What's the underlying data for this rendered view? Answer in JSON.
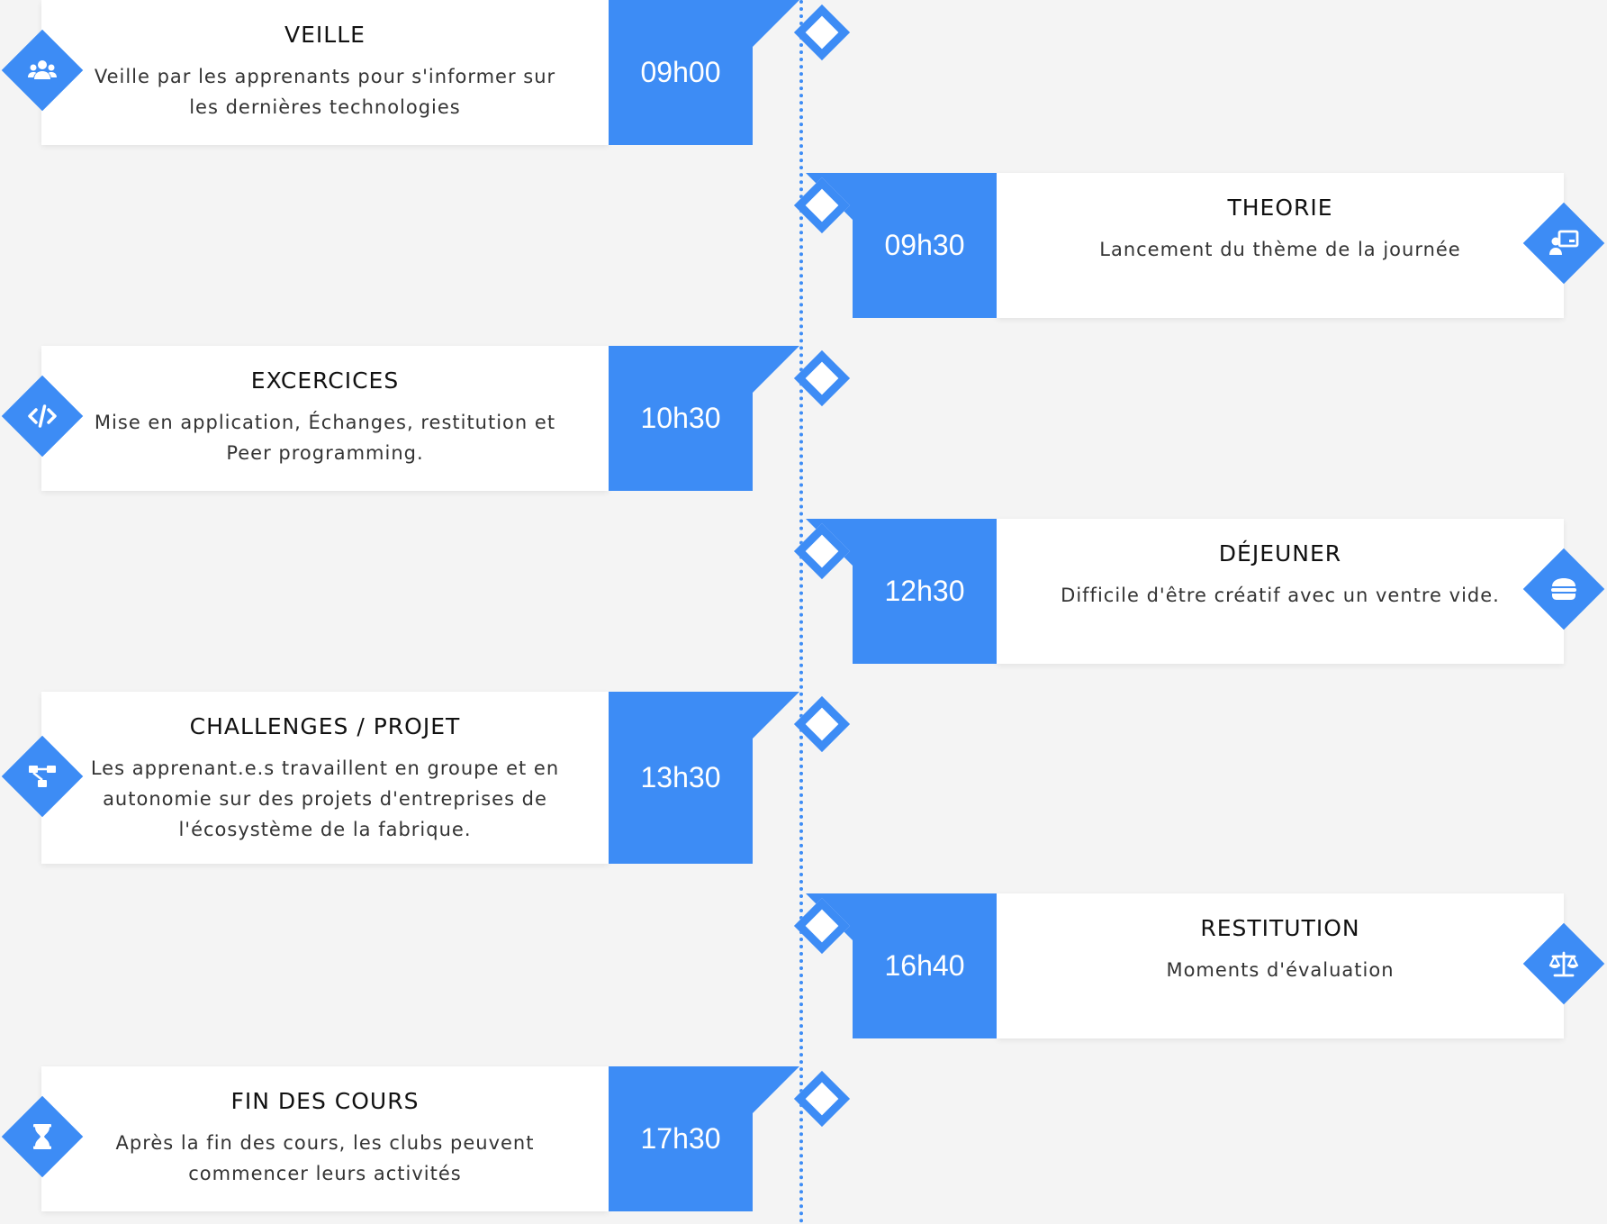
{
  "accent_color": "#3d8cf5",
  "background_color": "#f4f4f4",
  "entries": [
    {
      "side": "left",
      "time": "09h00",
      "title": "VEILLE",
      "icon": "users-group-icon",
      "description": "Veille par les apprenants pour s'informer sur les dernières technologies"
    },
    {
      "side": "right",
      "time": "09h30",
      "title": "THEORIE",
      "icon": "teacher-board-icon",
      "description": "Lancement du thème de la journée"
    },
    {
      "side": "left",
      "time": "10h30",
      "title": "EXCERCICES",
      "icon": "code-icon",
      "description": "Mise en application, Échanges, restitution et Peer programming."
    },
    {
      "side": "right",
      "time": "12h30",
      "title": "DÉJEUNER",
      "icon": "burger-icon",
      "description": "Difficile d'être créatif avec un ventre vide."
    },
    {
      "side": "left",
      "time": "13h30",
      "title": "CHALLENGES / PROJET",
      "icon": "project-diagram-icon",
      "description": "Les apprenant.e.s travaillent en groupe et en autonomie sur des projets d'entreprises de l'écosystème de la fabrique."
    },
    {
      "side": "right",
      "time": "16h40",
      "title": "RESTITUTION",
      "icon": "balance-scale-icon",
      "description": "Moments d'évaluation"
    },
    {
      "side": "left",
      "time": "17h30",
      "title": "FIN DES COURS",
      "icon": "hourglass-icon",
      "description": "Après la fin des cours, les clubs peuvent commencer leurs activités"
    }
  ]
}
